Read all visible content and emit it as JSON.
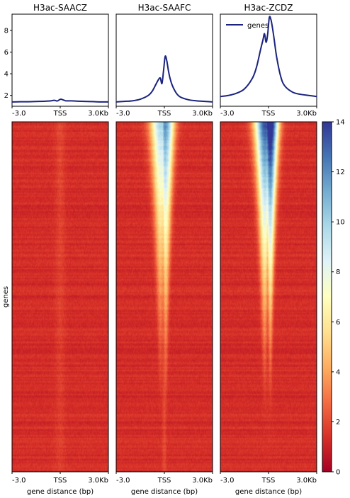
{
  "chart_data": {
    "type": "heatmap",
    "panels": [
      {
        "title": "H3ac-SAACZ"
      },
      {
        "title": "H3ac-SAAFC"
      },
      {
        "title": "H3ac-ZCDZ"
      }
    ],
    "profile": {
      "ylim": [
        1,
        9.5
      ],
      "yticks": [
        "2",
        "4",
        "6",
        "8"
      ],
      "legend": "genes",
      "x": [
        -3.0,
        -2.5,
        -2.0,
        -1.5,
        -1.0,
        -0.75,
        -0.5,
        -0.35,
        -0.25,
        -0.15,
        -0.05,
        0.05,
        0.15,
        0.25,
        0.35,
        0.5,
        0.75,
        1.0,
        1.5,
        2.0,
        2.5,
        3.0
      ],
      "series": [
        {
          "values": [
            1.4,
            1.42,
            1.42,
            1.44,
            1.46,
            1.48,
            1.52,
            1.55,
            1.5,
            1.5,
            1.6,
            1.65,
            1.6,
            1.55,
            1.5,
            1.5,
            1.5,
            1.47,
            1.45,
            1.43,
            1.4,
            1.4
          ]
        },
        {
          "values": [
            1.4,
            1.45,
            1.5,
            1.65,
            2.0,
            2.4,
            3.1,
            3.5,
            3.6,
            3.1,
            4.3,
            5.6,
            5.2,
            4.3,
            3.6,
            2.9,
            2.2,
            1.85,
            1.6,
            1.5,
            1.45,
            1.4
          ]
        },
        {
          "values": [
            1.9,
            2.0,
            2.2,
            2.6,
            3.6,
            4.6,
            6.2,
            7.1,
            7.7,
            6.9,
            7.7,
            9.2,
            9.0,
            8.2,
            7.2,
            5.6,
            3.8,
            2.9,
            2.3,
            2.1,
            2.0,
            1.9
          ]
        }
      ]
    },
    "heatmap": {
      "ylabel": "genes",
      "xlabel": "gene distance (bp)",
      "peaks": [
        0.6,
        10.0,
        14.0
      ],
      "colorbar": {
        "min": 0,
        "max": 14,
        "ticks": [
          "0",
          "2",
          "4",
          "6",
          "8",
          "10",
          "12",
          "14"
        ]
      }
    },
    "xticks": [
      "-3.0",
      "TSS",
      "3.0Kb"
    ]
  },
  "colors": {
    "line": "#1a237e",
    "scale": [
      "#a50026",
      "#d73027",
      "#f46d43",
      "#fdae61",
      "#fee090",
      "#ffffbf",
      "#e0f3f8",
      "#abd9e9",
      "#74add1",
      "#4575b4",
      "#313695"
    ]
  }
}
